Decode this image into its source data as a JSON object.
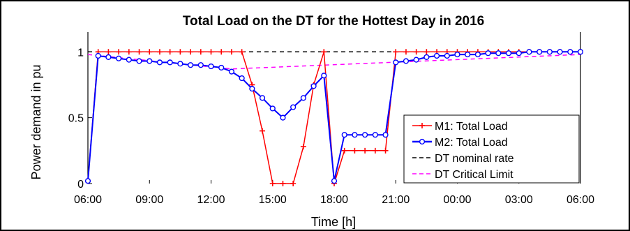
{
  "chart_data": {
    "type": "line",
    "title": "Total Load on the DT for the Hottest Day in 2016",
    "xlabel": "Time [h]",
    "ylabel": "Power demand in pu",
    "x_ticks": [
      "06:00",
      "09:00",
      "12:00",
      "15:00",
      "18:00",
      "21:00",
      "00:00",
      "03:00",
      "06:00"
    ],
    "y_ticks": [
      "0",
      "0.5",
      "1"
    ],
    "xlim": [
      0,
      24
    ],
    "ylim": [
      0,
      1.15
    ],
    "grid": false,
    "legend_position": "bottom-right",
    "series": [
      {
        "name": "M1: Total Load",
        "color": "#ff0000",
        "marker": "plus",
        "x": [
          0,
          0.5,
          1,
          1.5,
          2,
          2.5,
          3,
          3.5,
          4,
          4.5,
          5,
          5.5,
          6,
          6.5,
          7,
          7.5,
          8,
          8.5,
          9,
          9.5,
          10,
          10.5,
          11,
          11.5,
          12,
          12.5,
          13,
          13.5,
          14,
          14.5,
          15,
          15.5,
          16,
          16.5,
          17,
          17.5,
          18,
          18.5,
          19,
          19.5,
          20,
          20.5,
          21,
          21.5,
          22,
          22.5,
          23,
          23.5,
          24
        ],
        "values": [
          0.02,
          1,
          1,
          1,
          1,
          1,
          1,
          1,
          1,
          1,
          1,
          1,
          1,
          1,
          1,
          1,
          0.75,
          0.4,
          0,
          0,
          0,
          0.28,
          0.75,
          1,
          0,
          0.25,
          0.25,
          0.25,
          0.25,
          0.25,
          1,
          1,
          1,
          1,
          1,
          1,
          1,
          1,
          1,
          1,
          1,
          1,
          1,
          1,
          1,
          1,
          1,
          1,
          1
        ]
      },
      {
        "name": "M2: Total Load",
        "color": "#0000ff",
        "marker": "circle",
        "x": [
          0,
          0.5,
          1,
          1.5,
          2,
          2.5,
          3,
          3.5,
          4,
          4.5,
          5,
          5.5,
          6,
          6.5,
          7,
          7.5,
          8,
          8.5,
          9,
          9.5,
          10,
          10.5,
          11,
          11.5,
          12,
          12.5,
          13,
          13.5,
          14,
          14.5,
          15,
          15.5,
          16,
          16.5,
          17,
          17.5,
          18,
          18.5,
          19,
          19.5,
          20,
          20.5,
          21,
          21.5,
          22,
          22.5,
          23,
          23.5,
          24
        ],
        "values": [
          0.02,
          0.97,
          0.96,
          0.95,
          0.94,
          0.93,
          0.93,
          0.92,
          0.92,
          0.91,
          0.9,
          0.9,
          0.89,
          0.88,
          0.85,
          0.8,
          0.72,
          0.65,
          0.57,
          0.5,
          0.58,
          0.65,
          0.74,
          0.82,
          0.02,
          0.37,
          0.37,
          0.37,
          0.37,
          0.37,
          0.92,
          0.93,
          0.94,
          0.96,
          0.97,
          0.97,
          0.98,
          0.98,
          0.98,
          0.99,
          0.99,
          0.99,
          0.99,
          1,
          1,
          1,
          1,
          1,
          1
        ]
      },
      {
        "name": "DT nominal rate",
        "color": "#000000",
        "marker": "none",
        "dash": "dashed",
        "x": [
          0,
          24
        ],
        "values": [
          1,
          1
        ]
      },
      {
        "name": "DT Critical Limit",
        "color": "#ff00ff",
        "marker": "none",
        "dash": "dashed",
        "x": [
          0,
          7,
          24
        ],
        "values": [
          0.98,
          0.87,
          0.98
        ]
      }
    ]
  }
}
